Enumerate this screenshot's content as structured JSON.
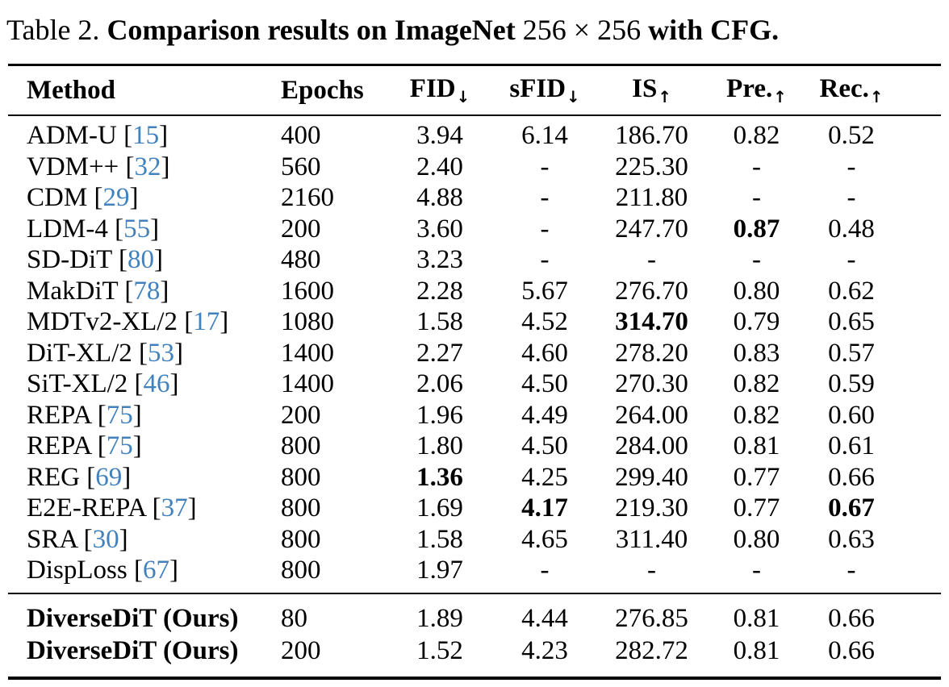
{
  "caption": {
    "label": "Table 2.",
    "bold_text_1": "Comparison results on ImageNet",
    "math_text": "256 × 256",
    "bold_text_2": "with CFG",
    "period": "."
  },
  "colors": {
    "citation_link": "#4182be"
  },
  "table": {
    "headers": [
      {
        "key": "method",
        "label": "Method",
        "arrow": ""
      },
      {
        "key": "epochs",
        "label": "Epochs",
        "arrow": ""
      },
      {
        "key": "fid",
        "label": "FID",
        "arrow": "↓"
      },
      {
        "key": "sfid",
        "label": "sFID",
        "arrow": "↓"
      },
      {
        "key": "is",
        "label": "IS",
        "arrow": "↑"
      },
      {
        "key": "pre",
        "label": "Pre.",
        "arrow": "↑"
      },
      {
        "key": "rec",
        "label": "Rec.",
        "arrow": "↑"
      }
    ],
    "sections": [
      {
        "name": "prior-methods",
        "rows": [
          {
            "method": "ADM-U",
            "cite": "15",
            "epochs": "400",
            "fid": "3.94",
            "sfid": "6.14",
            "is": "186.70",
            "pre": "0.82",
            "rec": "0.52",
            "bold": [],
            "method_bold": false
          },
          {
            "method": "VDM++",
            "cite": "32",
            "epochs": "560",
            "fid": "2.40",
            "sfid": "-",
            "is": "225.30",
            "pre": "-",
            "rec": "-",
            "bold": [],
            "method_bold": false
          },
          {
            "method": "CDM",
            "cite": "29",
            "epochs": "2160",
            "fid": "4.88",
            "sfid": "-",
            "is": "211.80",
            "pre": "-",
            "rec": "-",
            "bold": [],
            "method_bold": false
          },
          {
            "method": "LDM-4",
            "cite": "55",
            "epochs": "200",
            "fid": "3.60",
            "sfid": "-",
            "is": "247.70",
            "pre": "0.87",
            "rec": "0.48",
            "bold": [
              "pre"
            ],
            "method_bold": false
          },
          {
            "method": "SD-DiT",
            "cite": "80",
            "epochs": "480",
            "fid": "3.23",
            "sfid": "-",
            "is": "-",
            "pre": "-",
            "rec": "-",
            "bold": [],
            "method_bold": false
          },
          {
            "method": "MakDiT",
            "cite": "78",
            "epochs": "1600",
            "fid": "2.28",
            "sfid": "5.67",
            "is": "276.70",
            "pre": "0.80",
            "rec": "0.62",
            "bold": [],
            "method_bold": false
          },
          {
            "method": "MDTv2-XL/2",
            "cite": "17",
            "epochs": "1080",
            "fid": "1.58",
            "sfid": "4.52",
            "is": "314.70",
            "pre": "0.79",
            "rec": "0.65",
            "bold": [
              "is"
            ],
            "method_bold": false
          },
          {
            "method": "DiT-XL/2",
            "cite": "53",
            "epochs": "1400",
            "fid": "2.27",
            "sfid": "4.60",
            "is": "278.20",
            "pre": "0.83",
            "rec": "0.57",
            "bold": [],
            "method_bold": false
          },
          {
            "method": "SiT-XL/2",
            "cite": "46",
            "epochs": "1400",
            "fid": "2.06",
            "sfid": "4.50",
            "is": "270.30",
            "pre": "0.82",
            "rec": "0.59",
            "bold": [],
            "method_bold": false
          },
          {
            "method": "REPA",
            "cite": "75",
            "epochs": "200",
            "fid": "1.96",
            "sfid": "4.49",
            "is": "264.00",
            "pre": "0.82",
            "rec": "0.60",
            "bold": [],
            "method_bold": false
          },
          {
            "method": "REPA",
            "cite": "75",
            "epochs": "800",
            "fid": "1.80",
            "sfid": "4.50",
            "is": "284.00",
            "pre": "0.81",
            "rec": "0.61",
            "bold": [],
            "method_bold": false
          },
          {
            "method": "REG",
            "cite": "69",
            "epochs": "800",
            "fid": "1.36",
            "sfid": "4.25",
            "is": "299.40",
            "pre": "0.77",
            "rec": "0.66",
            "bold": [
              "fid"
            ],
            "method_bold": false
          },
          {
            "method": "E2E-REPA",
            "cite": "37",
            "epochs": "800",
            "fid": "1.69",
            "sfid": "4.17",
            "is": "219.30",
            "pre": "0.77",
            "rec": "0.67",
            "bold": [
              "sfid",
              "rec"
            ],
            "method_bold": false
          },
          {
            "method": "SRA",
            "cite": "30",
            "epochs": "800",
            "fid": "1.58",
            "sfid": "4.65",
            "is": "311.40",
            "pre": "0.80",
            "rec": "0.63",
            "bold": [],
            "method_bold": false
          },
          {
            "method": "DispLoss",
            "cite": "67",
            "epochs": "800",
            "fid": "1.97",
            "sfid": "-",
            "is": "-",
            "pre": "-",
            "rec": "-",
            "bold": [],
            "method_bold": false
          }
        ]
      },
      {
        "name": "ours",
        "rows": [
          {
            "method": "DiverseDiT (Ours)",
            "cite": null,
            "epochs": "80",
            "fid": "1.89",
            "sfid": "4.44",
            "is": "276.85",
            "pre": "0.81",
            "rec": "0.66",
            "bold": [],
            "method_bold": true
          },
          {
            "method": "DiverseDiT (Ours)",
            "cite": null,
            "epochs": "200",
            "fid": "1.52",
            "sfid": "4.23",
            "is": "282.72",
            "pre": "0.81",
            "rec": "0.66",
            "bold": [],
            "method_bold": true
          }
        ]
      }
    ]
  }
}
